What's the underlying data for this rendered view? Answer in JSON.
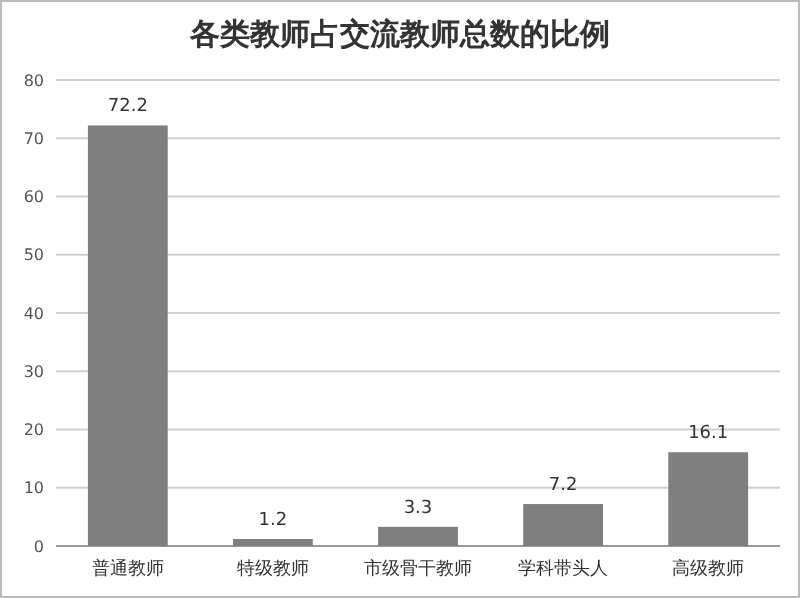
{
  "chart_data": {
    "type": "bar",
    "title": "各类教师占交流教师总数的比例",
    "categories": [
      "普通教师",
      "特级教师",
      "市级骨干教师",
      "学科带头人",
      "高级教师"
    ],
    "values": [
      72.2,
      1.2,
      3.3,
      7.2,
      16.1
    ],
    "color": "#7f7f7f",
    "ylim": [
      0,
      80
    ],
    "yticks": [
      0,
      10,
      20,
      30,
      40,
      50,
      60,
      70,
      80
    ],
    "grid": "y",
    "data_labels": true
  }
}
